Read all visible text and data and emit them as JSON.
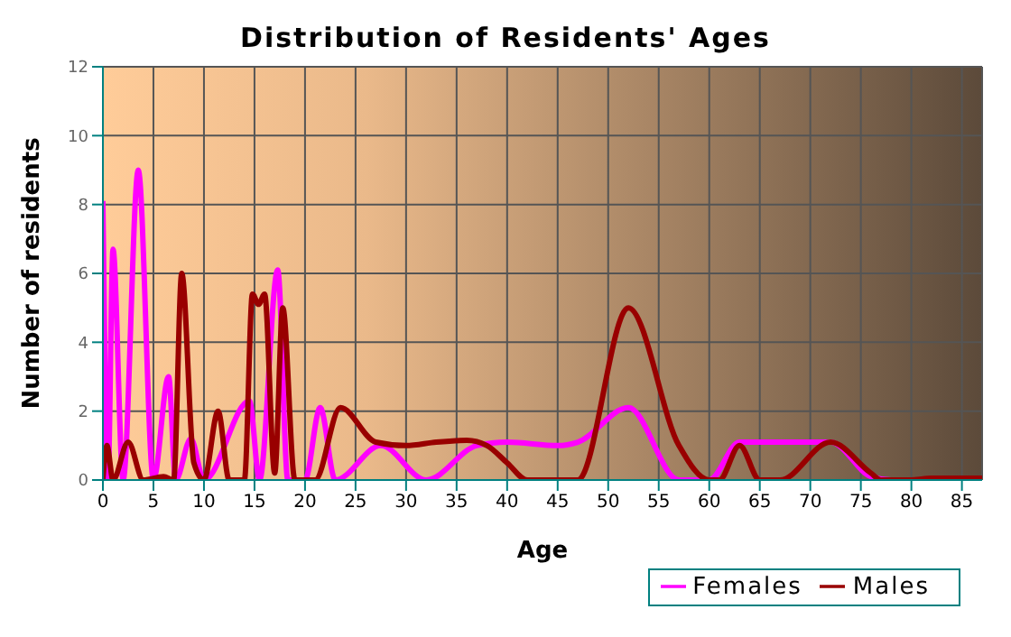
{
  "chart_data": {
    "type": "line",
    "title": "Distribution of Residents' Ages",
    "xlabel": "Age",
    "ylabel": "Number of residents",
    "xlim": [
      0,
      87
    ],
    "xticks": [
      0,
      5,
      10,
      15,
      20,
      25,
      30,
      35,
      40,
      45,
      50,
      55,
      60,
      65,
      70,
      75,
      80,
      85
    ],
    "ylim": [
      0,
      12
    ],
    "yticks": [
      0,
      2,
      4,
      6,
      8,
      10,
      12
    ],
    "grid": true,
    "legend": "bottom right",
    "marker": "none",
    "line_style": "solid",
    "series": [
      {
        "name": "Males",
        "color": "#990000",
        "x": [
          0,
          0.4,
          1,
          2.5,
          4,
          6,
          7,
          7.8,
          9,
          10,
          11.4,
          12.5,
          14,
          14.8,
          15.4,
          16,
          17,
          17.8,
          19,
          21,
          23.5,
          27,
          30,
          33,
          36,
          38,
          40,
          42,
          47,
          52,
          57,
          60,
          61,
          63,
          65,
          67,
          72,
          76,
          77,
          80,
          82,
          87
        ],
        "values": [
          0,
          1,
          0,
          1.1,
          0,
          0.1,
          0,
          6,
          0.5,
          0,
          2,
          0,
          0,
          5.4,
          5.1,
          5.4,
          0.2,
          5,
          0,
          0,
          2.1,
          1.1,
          1,
          1.1,
          1.15,
          1,
          0.5,
          0,
          0,
          5,
          1,
          0,
          0,
          1,
          0,
          0,
          1.1,
          0.2,
          0,
          0,
          0.05,
          0.05
        ]
      },
      {
        "name": "Females",
        "color": "#ff00ff",
        "x": [
          0,
          0.5,
          1,
          2,
          3.5,
          5,
          6.5,
          7.2,
          8.7,
          10,
          14.5,
          15.5,
          17.3,
          18.3,
          20,
          21.5,
          23,
          27.5,
          32,
          37,
          40,
          45,
          47,
          52,
          57,
          60,
          63,
          70,
          72,
          76,
          78,
          80
        ],
        "values": [
          8.1,
          0,
          6.7,
          0,
          9,
          0,
          3,
          0,
          1.2,
          0,
          2.3,
          0,
          6.1,
          0,
          0,
          2.1,
          0,
          1,
          0,
          1,
          1.1,
          1,
          1.1,
          2.1,
          0,
          0,
          1.1,
          1.1,
          1.1,
          0.1,
          0,
          0
        ]
      }
    ]
  }
}
